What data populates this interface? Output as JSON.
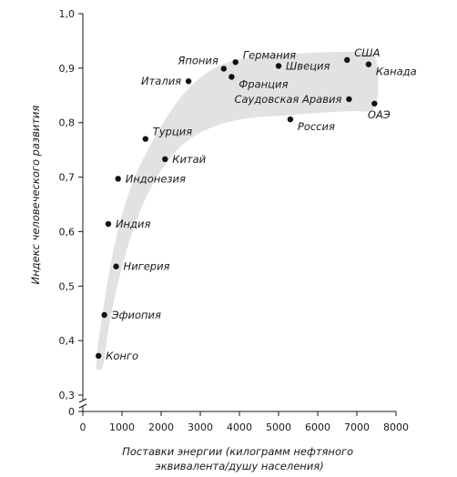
{
  "chart_data": {
    "type": "scatter",
    "xlabel": [
      "Поставки энергии (килограмм нефтяного",
      "эквивалента/душу населения)"
    ],
    "ylabel": "Индекс человеческого развития",
    "xlim": [
      0,
      8000
    ],
    "ylim_upper": [
      0.3,
      1.0
    ],
    "y_break_between": [
      0,
      0.3
    ],
    "x_ticks": [
      "0",
      "1000",
      "2000",
      "3000",
      "4000",
      "5000",
      "6000",
      "7000",
      "8000"
    ],
    "x_tick_values": [
      0,
      1000,
      2000,
      3000,
      4000,
      5000,
      6000,
      7000,
      8000
    ],
    "y_ticks": [
      "0",
      "0,3",
      "0,4",
      "0,5",
      "0,6",
      "0,7",
      "0,8",
      "0,9",
      "1,0"
    ],
    "y_tick_values": [
      0,
      0.3,
      0.4,
      0.5,
      0.6,
      0.7,
      0.8,
      0.9,
      1.0
    ],
    "grid": false,
    "band_color": "#e2e2e2",
    "point_color": "#111111",
    "points": [
      {
        "label": "Конго",
        "x": 400,
        "y": 0.372,
        "anchor": "right"
      },
      {
        "label": "Эфиопия",
        "x": 550,
        "y": 0.447,
        "anchor": "right"
      },
      {
        "label": "Нигерия",
        "x": 850,
        "y": 0.536,
        "anchor": "right"
      },
      {
        "label": "Индия",
        "x": 650,
        "y": 0.614,
        "anchor": "right"
      },
      {
        "label": "Индонезия",
        "x": 900,
        "y": 0.697,
        "anchor": "right"
      },
      {
        "label": "Китай",
        "x": 2100,
        "y": 0.733,
        "anchor": "right"
      },
      {
        "label": "Турция",
        "x": 1600,
        "y": 0.77,
        "anchor": "right-up"
      },
      {
        "label": "Италия",
        "x": 2700,
        "y": 0.876,
        "anchor": "left"
      },
      {
        "label": "Япония",
        "x": 3600,
        "y": 0.899,
        "anchor": "left-up"
      },
      {
        "label": "Германия",
        "x": 3900,
        "y": 0.911,
        "anchor": "right-up"
      },
      {
        "label": "Франция",
        "x": 3800,
        "y": 0.884,
        "anchor": "right-down"
      },
      {
        "label": "Швеция",
        "x": 5000,
        "y": 0.904,
        "anchor": "right"
      },
      {
        "label": "США",
        "x": 6750,
        "y": 0.915,
        "anchor": "right-up"
      },
      {
        "label": "Канада",
        "x": 7300,
        "y": 0.907,
        "anchor": "right-down"
      },
      {
        "label": "Саудовская Аравия",
        "x": 6800,
        "y": 0.843,
        "anchor": "left"
      },
      {
        "label": "ОАЭ",
        "x": 7450,
        "y": 0.835,
        "anchor": "below-left"
      },
      {
        "label": "Россия",
        "x": 5300,
        "y": 0.806,
        "anchor": "right-down"
      }
    ]
  }
}
